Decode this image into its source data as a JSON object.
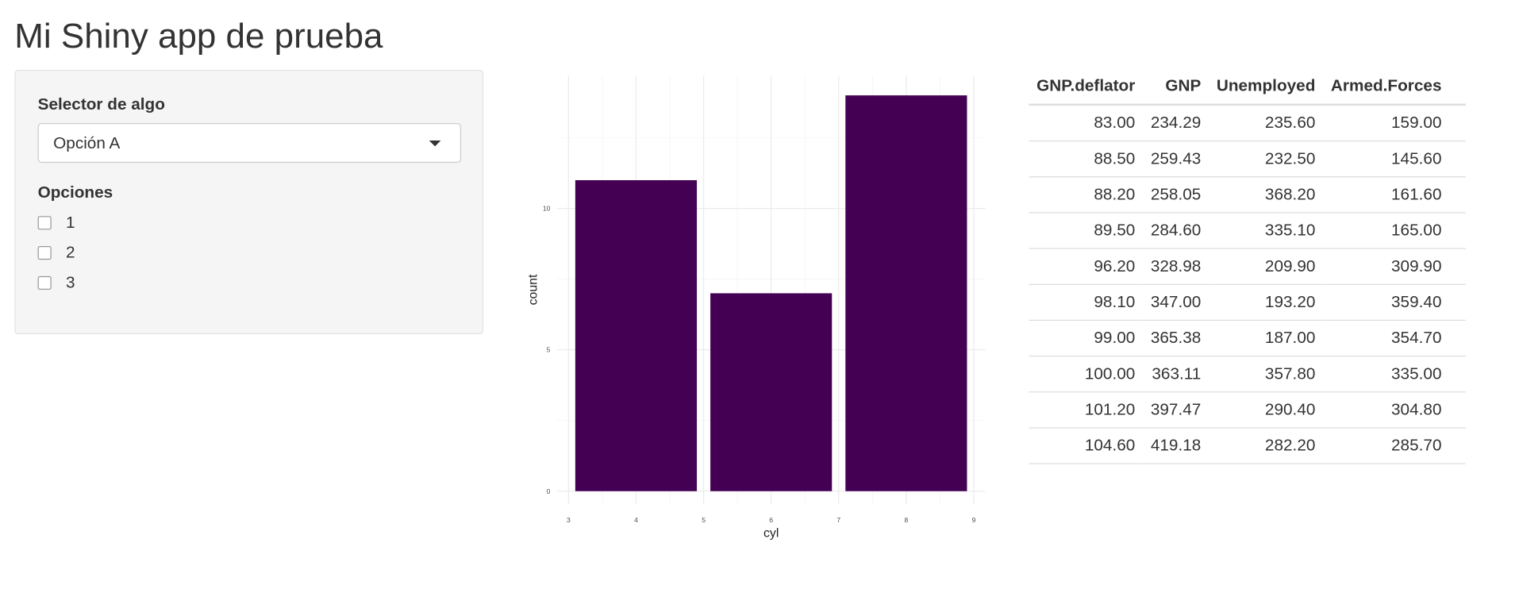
{
  "title": "Mi Shiny app de prueba",
  "sidebar": {
    "select_label": "Selector de algo",
    "select_value": "Opción A",
    "checkbox_label": "Opciones",
    "checkbox_options": [
      "1",
      "2",
      "3"
    ]
  },
  "chart_data": {
    "type": "bar",
    "x": [
      4,
      6,
      8
    ],
    "values": [
      11,
      7,
      14
    ],
    "color": "#440154",
    "xlabel": "cyl",
    "ylabel": "count",
    "xlim": [
      2.83,
      9.17
    ],
    "ylim": [
      -0.45,
      14.7
    ],
    "xticks": [
      3,
      4,
      5,
      6,
      7,
      8,
      9
    ],
    "yticks": [
      0,
      5,
      10
    ],
    "grid": true
  },
  "table": {
    "headers": [
      "GNP.deflator",
      "GNP",
      "Unemployed",
      "Armed.Forces"
    ],
    "rows": [
      [
        "83.00",
        "234.29",
        "235.60",
        "159.00"
      ],
      [
        "88.50",
        "259.43",
        "232.50",
        "145.60"
      ],
      [
        "88.20",
        "258.05",
        "368.20",
        "161.60"
      ],
      [
        "89.50",
        "284.60",
        "335.10",
        "165.00"
      ],
      [
        "96.20",
        "328.98",
        "209.90",
        "309.90"
      ],
      [
        "98.10",
        "347.00",
        "193.20",
        "359.40"
      ],
      [
        "99.00",
        "365.38",
        "187.00",
        "354.70"
      ],
      [
        "100.00",
        "363.11",
        "357.80",
        "335.00"
      ],
      [
        "101.20",
        "397.47",
        "290.40",
        "304.80"
      ],
      [
        "104.60",
        "419.18",
        "282.20",
        "285.70"
      ]
    ]
  }
}
